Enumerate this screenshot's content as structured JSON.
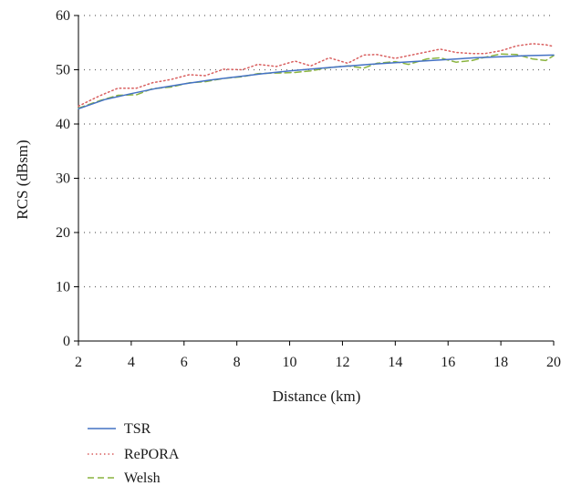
{
  "chart_data": {
    "type": "line",
    "title": "",
    "xlabel": "Distance (km)",
    "ylabel": "RCS (dBsm)",
    "xlim": [
      2,
      20
    ],
    "ylim": [
      0,
      60
    ],
    "xticks": [
      2,
      4,
      6,
      8,
      10,
      12,
      14,
      16,
      18,
      20
    ],
    "yticks": [
      0,
      10,
      20,
      30,
      40,
      50,
      60
    ],
    "grid": "horizontal-dotted",
    "legend_placement": "bottom-left-below-plot",
    "series": [
      {
        "name": "TSR",
        "color": "#4472c4",
        "style": "solid",
        "x": [
          2,
          3,
          4,
          5,
          6,
          7,
          8,
          9,
          10,
          11,
          12,
          13,
          14,
          15,
          16,
          17,
          18,
          19,
          20
        ],
        "y": [
          42.8,
          44.5,
          45.6,
          46.6,
          47.4,
          48.1,
          48.7,
          49.3,
          49.8,
          50.2,
          50.6,
          51.0,
          51.3,
          51.6,
          51.9,
          52.2,
          52.4,
          52.6,
          52.7
        ]
      },
      {
        "name": "RePORA",
        "color": "#d95f5f",
        "style": "dotted",
        "x": [
          2,
          2.8,
          3.5,
          4.2,
          4.8,
          5.5,
          6.2,
          6.8,
          7.5,
          8.2,
          8.8,
          9.5,
          10.2,
          10.8,
          11.5,
          12.2,
          12.8,
          13.3,
          14.0,
          14.5,
          15.2,
          15.7,
          16.3,
          16.9,
          17.4,
          18.0,
          18.6,
          19.2,
          19.7,
          20
        ],
        "y": [
          43.3,
          45.2,
          46.6,
          46.6,
          47.6,
          48.2,
          49.1,
          48.9,
          50.1,
          50.0,
          51.0,
          50.6,
          51.6,
          50.7,
          52.2,
          51.2,
          52.7,
          52.8,
          52.1,
          52.6,
          53.3,
          53.8,
          53.2,
          53.0,
          53.0,
          53.5,
          54.4,
          54.8,
          54.6,
          54.3
        ]
      },
      {
        "name": "Welsh",
        "color": "#8ab43f",
        "style": "dashed",
        "x": [
          2,
          2.8,
          3.5,
          4.2,
          4.8,
          5.5,
          6.2,
          6.8,
          7.5,
          8.2,
          8.8,
          9.5,
          10.2,
          10.8,
          11.5,
          12.2,
          12.8,
          13.3,
          14.0,
          14.5,
          15.2,
          15.7,
          16.3,
          16.9,
          17.4,
          18.0,
          18.6,
          19.2,
          19.7,
          20
        ],
        "y": [
          42.9,
          44.3,
          45.3,
          45.4,
          46.5,
          46.8,
          47.6,
          47.8,
          48.4,
          48.7,
          49.3,
          49.4,
          49.5,
          49.8,
          50.4,
          50.7,
          50.3,
          51.2,
          51.5,
          51.0,
          52.0,
          52.2,
          51.4,
          51.7,
          52.3,
          52.9,
          52.8,
          52.0,
          51.7,
          52.6
        ]
      }
    ]
  }
}
